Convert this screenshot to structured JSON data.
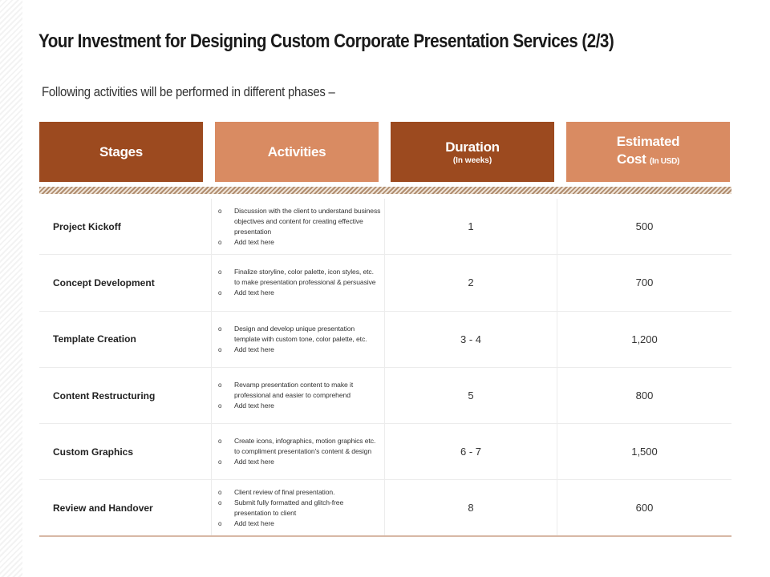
{
  "title": "Your Investment for Designing Custom Corporate Presentation Services (2/3)",
  "subtitle": "Following activities will be performed in different phases –",
  "headers": {
    "stages": "Stages",
    "activities": "Activities",
    "duration": "Duration",
    "duration_unit": "(In weeks)",
    "cost_line1": "Estimated",
    "cost_line2": "Cost",
    "cost_unit": "(In USD)"
  },
  "colors": {
    "dark_header": "#9c4a1f",
    "light_header": "#d98b62"
  },
  "bullet_icon": "hollow-circle-bullet",
  "rows": [
    {
      "stage": "Project Kickoff",
      "activities": [
        "Discussion with the client to understand business objectives and content for creating effective presentation",
        "Add text here"
      ],
      "duration": "1",
      "cost": "500"
    },
    {
      "stage": "Concept Development",
      "activities": [
        "Finalize storyline, color palette, icon styles, etc. to make presentation professional & persuasive",
        "Add text here"
      ],
      "duration": "2",
      "cost": "700"
    },
    {
      "stage": "Template Creation",
      "activities": [
        "Design and develop unique presentation template with custom tone, color palette, etc.",
        "Add text here"
      ],
      "duration": "3 - 4",
      "cost": "1,200"
    },
    {
      "stage": "Content Restructuring",
      "activities": [
        "Revamp presentation content to make it professional and easier to comprehend",
        "Add text here"
      ],
      "duration": "5",
      "cost": "800"
    },
    {
      "stage": "Custom Graphics",
      "activities": [
        "Create icons, infographics, motion graphics etc. to compliment presentation's content & design",
        "Add text here"
      ],
      "duration": "6 - 7",
      "cost": "1,500"
    },
    {
      "stage": "Review and Handover",
      "activities": [
        "Client review of final presentation.",
        "Submit fully formatted and glitch-free presentation to client",
        "Add text here"
      ],
      "duration": "8",
      "cost": "600"
    }
  ]
}
